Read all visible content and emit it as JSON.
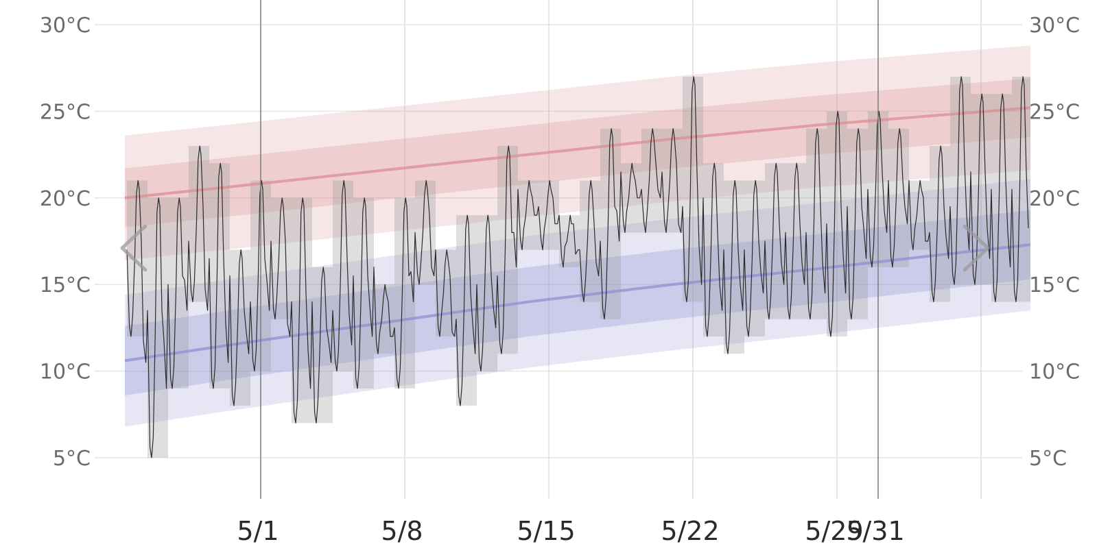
{
  "chart_data": {
    "type": "line",
    "title": "",
    "xlabel": "",
    "ylabel": "",
    "ylim": [
      2.3,
      31.5
    ],
    "y_ticks": [
      "5°C",
      "10°C",
      "15°C",
      "20°C",
      "25°C",
      "30°C"
    ],
    "y_tick_values": [
      5,
      10,
      15,
      20,
      25,
      30
    ],
    "x_ticks": [
      "5/1",
      "5/8",
      "5/15",
      "5/22",
      "5/29",
      "5/31"
    ],
    "x_tick_days": [
      1,
      8,
      15,
      22,
      29,
      31
    ],
    "x_range_days": [
      -5.6,
      38.4
    ],
    "grid": true,
    "series": [
      {
        "role": "normal_high",
        "color": "#d98e92",
        "mean": [
          [
            -5.6,
            20.0
          ],
          [
            0,
            20.7
          ],
          [
            7,
            21.6
          ],
          [
            14,
            22.5
          ],
          [
            21,
            23.4
          ],
          [
            28,
            24.2
          ],
          [
            38.4,
            25.2
          ]
        ],
        "band_inner_halfwidth": 1.7,
        "band_outer_halfwidth": 3.6
      },
      {
        "role": "normal_low",
        "color": "#8f8fd2",
        "mean": [
          [
            -5.6,
            10.6
          ],
          [
            0,
            11.6
          ],
          [
            7,
            12.8
          ],
          [
            14,
            14.0
          ],
          [
            21,
            15.0
          ],
          [
            28,
            15.9
          ],
          [
            38.4,
            17.3
          ]
        ],
        "band_inner_halfwidth": 2.0,
        "band_outer_halfwidth": 3.8
      },
      {
        "role": "observed_daily_range",
        "color": "#9a9a9a",
        "days": [
          -5,
          -4,
          -3,
          -2,
          -1,
          0,
          1,
          2,
          3,
          4,
          5,
          6,
          7,
          8,
          9,
          10,
          11,
          12,
          13,
          14,
          15,
          16,
          17,
          18,
          19,
          20,
          21,
          22,
          23,
          24,
          25,
          26,
          27,
          28,
          29,
          30,
          31,
          32,
          33,
          34,
          35,
          36,
          37,
          38
        ],
        "highs": [
          21,
          20,
          20,
          23,
          22,
          17,
          21,
          20,
          20,
          16,
          21,
          20,
          15,
          20,
          21,
          17,
          19,
          19,
          23,
          21,
          21,
          19,
          21,
          24,
          22,
          24,
          24,
          27,
          22,
          21,
          21,
          22,
          22,
          24,
          25,
          24,
          25,
          24,
          21,
          23,
          27,
          26,
          26,
          27
        ],
        "lows": [
          12,
          5,
          9,
          14,
          9,
          8,
          10,
          13,
          7,
          7,
          10,
          9,
          11,
          9,
          15,
          12,
          8,
          10,
          11,
          17,
          17,
          16,
          14,
          13,
          18,
          18,
          18,
          14,
          12,
          11,
          12,
          13,
          13,
          13,
          12,
          13,
          16,
          16,
          17,
          14,
          15,
          15,
          14,
          14
        ]
      }
    ],
    "vertical_markers_days": [
      1,
      31
    ]
  },
  "nav": {
    "prev_icon": "chevron-left-icon",
    "next_icon": "chevron-right-icon"
  }
}
